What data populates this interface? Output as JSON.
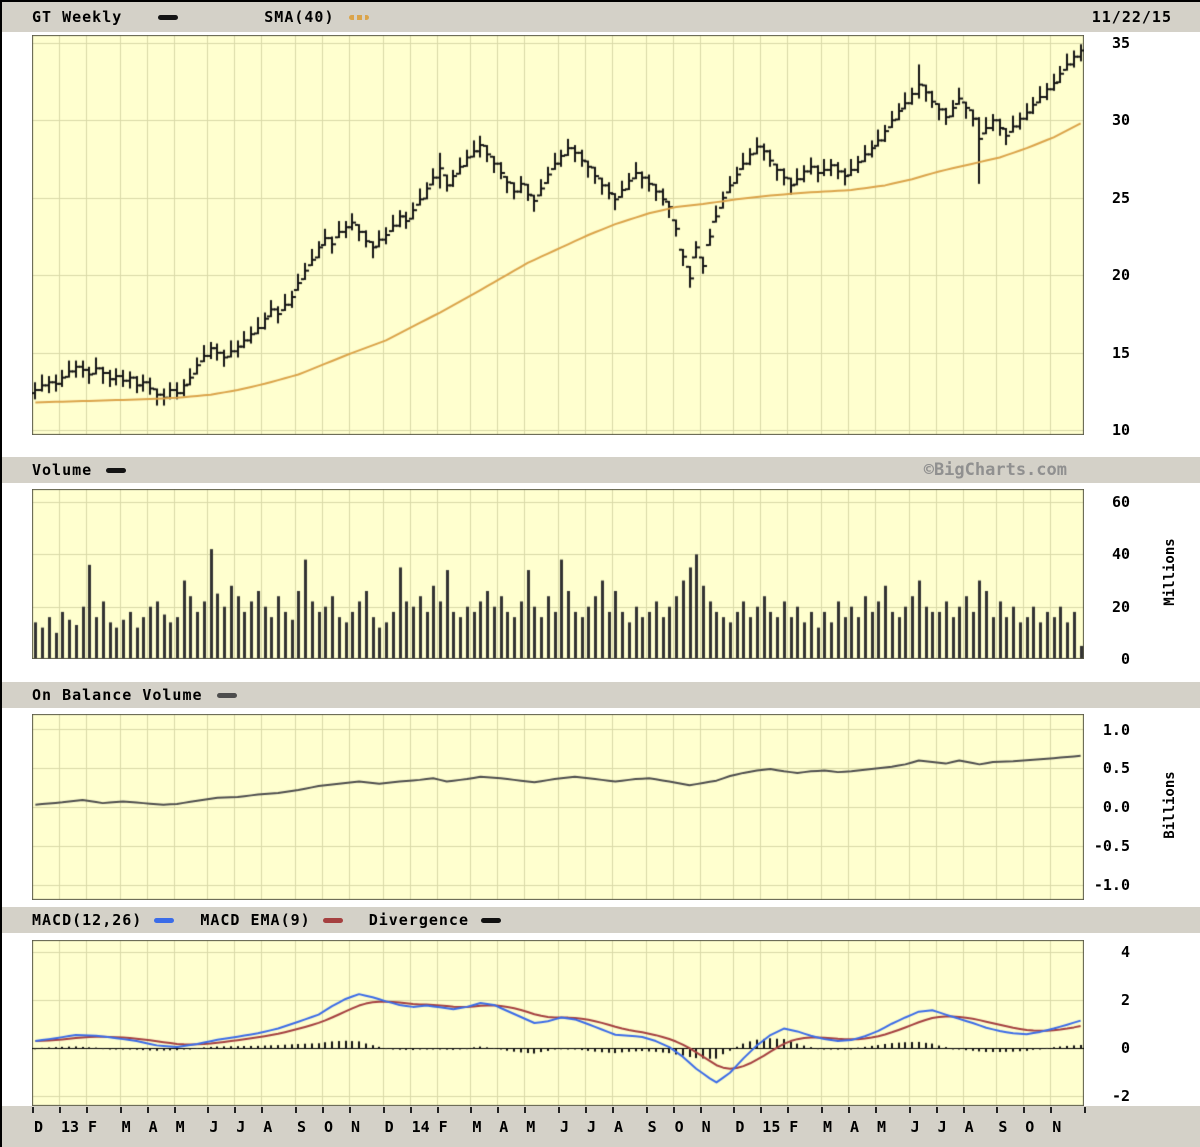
{
  "header": {
    "symbol_label": "GT Weekly",
    "sma_label": "SMA(40)",
    "date": "11/22/15"
  },
  "panels": {
    "price": {
      "ticks": [
        "35",
        "30",
        "25",
        "20",
        "15",
        "10"
      ]
    },
    "volume": {
      "label": "Volume",
      "watermark": "©BigCharts.com",
      "unit": "Millions",
      "ticks": [
        "60",
        "40",
        "20",
        "0"
      ]
    },
    "obv": {
      "label": "On Balance Volume",
      "unit": "Billions",
      "ticks": [
        "1.0",
        "0.5",
        "0.0",
        "-0.5",
        "-1.0"
      ]
    },
    "macd": {
      "legend": [
        {
          "label": "MACD(12,26)"
        },
        {
          "label": "MACD EMA(9)"
        },
        {
          "label": "Divergence"
        }
      ],
      "ticks": [
        "4",
        "2",
        "0",
        "-2"
      ]
    }
  },
  "colors": {
    "plot_bg": "#ffffcf",
    "grid": "#d9d9a8",
    "border": "#5a5a48",
    "bar": "#141414",
    "sma": "#dba44a",
    "vol_bar": "#333333",
    "obv_line": "#4d4d4d",
    "macd": "#3b6ce8",
    "signal": "#a54040",
    "hist": "#111111",
    "strip_bg": "#d4d1c8",
    "watermark": "#909090"
  },
  "x_axis": {
    "labels": [
      "D",
      "13",
      "F",
      "M",
      "A",
      "M",
      "J",
      "J",
      "A",
      "S",
      "O",
      "N",
      "D",
      "14",
      "F",
      "M",
      "A",
      "M",
      "J",
      "J",
      "A",
      "S",
      "O",
      "N",
      "D",
      "15",
      "F",
      "M",
      "A",
      "M",
      "J",
      "J",
      "A",
      "S",
      "O",
      "N"
    ],
    "month_weeks": [
      4,
      4,
      5,
      4,
      4,
      5,
      4,
      4,
      5,
      4,
      4,
      5,
      4,
      4,
      5,
      4,
      4,
      5,
      4,
      4,
      5,
      4,
      4,
      5,
      4,
      4,
      5,
      4,
      4,
      5,
      4,
      4,
      5,
      4,
      4,
      5
    ]
  },
  "chart_data": [
    {
      "type": "ohlc-bar",
      "title": "GT Weekly",
      "overlay": "SMA(40)",
      "ylim": [
        10,
        35
      ],
      "weeks": 156,
      "close": [
        12.6,
        12.9,
        13.1,
        13.0,
        13.4,
        13.8,
        14.1,
        13.9,
        13.6,
        14.0,
        13.7,
        13.3,
        13.5,
        13.2,
        13.4,
        12.9,
        13.1,
        12.7,
        12.3,
        12.1,
        12.6,
        12.4,
        12.9,
        13.4,
        14.2,
        14.8,
        15.3,
        15.0,
        14.7,
        15.1,
        15.4,
        15.8,
        16.2,
        16.6,
        17.2,
        17.8,
        17.5,
        18.1,
        18.6,
        19.5,
        20.3,
        21.0,
        21.8,
        22.4,
        22.0,
        22.8,
        23.1,
        23.4,
        22.8,
        22.2,
        21.8,
        22.3,
        22.6,
        23.2,
        23.8,
        23.5,
        24.2,
        24.9,
        25.6,
        26.3,
        26.9,
        25.8,
        26.4,
        27.0,
        27.6,
        28.0,
        28.4,
        27.8,
        27.2,
        26.6,
        26.0,
        25.4,
        25.9,
        25.2,
        24.8,
        25.6,
        26.5,
        27.2,
        27.7,
        28.2,
        27.9,
        27.4,
        27.0,
        26.4,
        25.8,
        25.3,
        24.9,
        25.5,
        26.1,
        26.6,
        26.3,
        25.9,
        25.4,
        24.9,
        24.4,
        23.0,
        21.2,
        19.8,
        21.8,
        20.6,
        22.5,
        23.8,
        25.0,
        25.8,
        26.5,
        27.2,
        27.8,
        28.3,
        28.0,
        27.4,
        26.8,
        26.3,
        25.8,
        26.2,
        26.7,
        27.0,
        26.6,
        26.8,
        27.1,
        26.7,
        26.4,
        26.8,
        27.3,
        27.8,
        28.2,
        28.7,
        29.3,
        30.0,
        30.6,
        31.1,
        31.7,
        32.3,
        31.8,
        31.2,
        30.7,
        30.2,
        30.8,
        31.4,
        30.8,
        30.1,
        28.8,
        29.5,
        30.0,
        29.5,
        29.0,
        29.6,
        30.1,
        30.5,
        31.0,
        31.5,
        32.0,
        32.4,
        33.0,
        33.6,
        34.1,
        34.5
      ],
      "bar_spread_high": [
        0.5,
        0.7,
        0.4,
        0.6
      ],
      "bar_spread_low": [
        0.6,
        0.4,
        0.7,
        0.5
      ],
      "week_high_low_overrides": {
        "60": [
          27.9,
          25.6
        ],
        "66": [
          29.0,
          27.6
        ],
        "97": [
          20.6,
          19.2
        ],
        "131": [
          33.6,
          31.4
        ],
        "140": [
          30.2,
          25.9
        ],
        "155": [
          34.9,
          33.8
        ]
      },
      "sma40_anchor_points": [
        [
          0,
          11.8
        ],
        [
          4,
          11.85
        ],
        [
          8,
          11.9
        ],
        [
          12,
          11.95
        ],
        [
          16,
          12.0
        ],
        [
          21,
          12.1
        ],
        [
          26,
          12.3
        ],
        [
          30,
          12.6
        ],
        [
          34,
          13.0
        ],
        [
          39,
          13.6
        ],
        [
          43,
          14.3
        ],
        [
          47,
          15.0
        ],
        [
          52,
          15.8
        ],
        [
          56,
          16.7
        ],
        [
          60,
          17.6
        ],
        [
          65,
          18.8
        ],
        [
          69,
          19.8
        ],
        [
          73,
          20.8
        ],
        [
          78,
          21.8
        ],
        [
          82,
          22.6
        ],
        [
          86,
          23.3
        ],
        [
          91,
          24.0
        ],
        [
          95,
          24.4
        ],
        [
          99,
          24.6
        ],
        [
          104,
          24.9
        ],
        [
          108,
          25.1
        ],
        [
          113,
          25.3
        ],
        [
          117,
          25.4
        ],
        [
          121,
          25.5
        ],
        [
          126,
          25.8
        ],
        [
          130,
          26.2
        ],
        [
          134,
          26.7
        ],
        [
          139,
          27.2
        ],
        [
          143,
          27.6
        ],
        [
          147,
          28.2
        ],
        [
          151,
          28.9
        ],
        [
          155,
          29.8
        ]
      ]
    },
    {
      "type": "bar",
      "title": "Volume",
      "ylabel": "Millions",
      "ylim": [
        0,
        60
      ],
      "values": [
        14,
        12,
        16,
        10,
        18,
        15,
        13,
        20,
        36,
        16,
        22,
        14,
        12,
        15,
        18,
        12,
        16,
        20,
        22,
        17,
        14,
        16,
        30,
        24,
        18,
        22,
        42,
        25,
        20,
        28,
        24,
        18,
        22,
        26,
        20,
        16,
        24,
        18,
        15,
        26,
        38,
        22,
        18,
        20,
        24,
        16,
        14,
        18,
        22,
        26,
        16,
        12,
        14,
        18,
        35,
        22,
        20,
        24,
        18,
        28,
        22,
        34,
        18,
        16,
        20,
        18,
        22,
        26,
        20,
        24,
        18,
        16,
        22,
        34,
        20,
        16,
        24,
        18,
        38,
        26,
        18,
        16,
        20,
        24,
        30,
        18,
        26,
        18,
        14,
        20,
        16,
        18,
        22,
        16,
        20,
        24,
        30,
        35,
        40,
        28,
        22,
        18,
        16,
        14,
        18,
        22,
        16,
        20,
        24,
        18,
        16,
        22,
        16,
        20,
        14,
        18,
        12,
        18,
        14,
        22,
        16,
        20,
        16,
        24,
        18,
        22,
        28,
        18,
        16,
        20,
        24,
        30,
        20,
        18,
        18,
        22,
        16,
        20,
        24,
        18,
        30,
        26,
        16,
        22,
        16,
        20,
        14,
        16,
        20,
        14,
        18,
        16,
        20,
        14,
        18,
        5
      ]
    },
    {
      "type": "line",
      "title": "On Balance Volume",
      "ylabel": "Billions",
      "ylim": [
        -1,
        1
      ],
      "anchor_points": [
        [
          0,
          0.03
        ],
        [
          4,
          0.06
        ],
        [
          7,
          0.09
        ],
        [
          10,
          0.05
        ],
        [
          13,
          0.07
        ],
        [
          16,
          0.05
        ],
        [
          19,
          0.03
        ],
        [
          21,
          0.04
        ],
        [
          24,
          0.08
        ],
        [
          27,
          0.12
        ],
        [
          30,
          0.13
        ],
        [
          33,
          0.16
        ],
        [
          36,
          0.18
        ],
        [
          39,
          0.22
        ],
        [
          42,
          0.27
        ],
        [
          45,
          0.3
        ],
        [
          48,
          0.33
        ],
        [
          51,
          0.3
        ],
        [
          54,
          0.33
        ],
        [
          57,
          0.35
        ],
        [
          59,
          0.37
        ],
        [
          61,
          0.33
        ],
        [
          64,
          0.36
        ],
        [
          66,
          0.39
        ],
        [
          69,
          0.37
        ],
        [
          72,
          0.34
        ],
        [
          74,
          0.32
        ],
        [
          77,
          0.36
        ],
        [
          80,
          0.39
        ],
        [
          83,
          0.36
        ],
        [
          86,
          0.33
        ],
        [
          89,
          0.36
        ],
        [
          91,
          0.37
        ],
        [
          94,
          0.33
        ],
        [
          97,
          0.28
        ],
        [
          99,
          0.31
        ],
        [
          101,
          0.34
        ],
        [
          103,
          0.4
        ],
        [
          105,
          0.44
        ],
        [
          107,
          0.47
        ],
        [
          109,
          0.49
        ],
        [
          111,
          0.46
        ],
        [
          113,
          0.44
        ],
        [
          115,
          0.46
        ],
        [
          117,
          0.47
        ],
        [
          119,
          0.45
        ],
        [
          121,
          0.46
        ],
        [
          124,
          0.49
        ],
        [
          127,
          0.52
        ],
        [
          129,
          0.55
        ],
        [
          131,
          0.6
        ],
        [
          133,
          0.58
        ],
        [
          135,
          0.56
        ],
        [
          137,
          0.6
        ],
        [
          140,
          0.55
        ],
        [
          142,
          0.58
        ],
        [
          145,
          0.59
        ],
        [
          148,
          0.61
        ],
        [
          151,
          0.63
        ],
        [
          155,
          0.66
        ]
      ]
    },
    {
      "type": "line+histogram",
      "title": "MACD(12,26) with EMA(9) signal and divergence histogram",
      "ylim": [
        -2,
        4
      ],
      "signal_rule": "EMA(9) of MACD",
      "histogram_rule": "MACD minus signal",
      "macd_anchor_points": [
        [
          0,
          0.3
        ],
        [
          3,
          0.42
        ],
        [
          6,
          0.55
        ],
        [
          9,
          0.52
        ],
        [
          12,
          0.42
        ],
        [
          15,
          0.3
        ],
        [
          18,
          0.12
        ],
        [
          21,
          0.05
        ],
        [
          24,
          0.18
        ],
        [
          27,
          0.35
        ],
        [
          30,
          0.48
        ],
        [
          33,
          0.62
        ],
        [
          36,
          0.82
        ],
        [
          39,
          1.1
        ],
        [
          42,
          1.4
        ],
        [
          44,
          1.75
        ],
        [
          46,
          2.05
        ],
        [
          48,
          2.25
        ],
        [
          50,
          2.12
        ],
        [
          52,
          1.95
        ],
        [
          54,
          1.8
        ],
        [
          56,
          1.72
        ],
        [
          58,
          1.78
        ],
        [
          60,
          1.7
        ],
        [
          62,
          1.62
        ],
        [
          64,
          1.72
        ],
        [
          66,
          1.88
        ],
        [
          68,
          1.8
        ],
        [
          70,
          1.55
        ],
        [
          72,
          1.3
        ],
        [
          74,
          1.05
        ],
        [
          76,
          1.12
        ],
        [
          78,
          1.28
        ],
        [
          80,
          1.2
        ],
        [
          82,
          1.0
        ],
        [
          84,
          0.78
        ],
        [
          86,
          0.56
        ],
        [
          88,
          0.52
        ],
        [
          90,
          0.47
        ],
        [
          92,
          0.3
        ],
        [
          94,
          0.05
        ],
        [
          96,
          -0.35
        ],
        [
          98,
          -0.85
        ],
        [
          100,
          -1.25
        ],
        [
          101,
          -1.42
        ],
        [
          103,
          -1.02
        ],
        [
          105,
          -0.42
        ],
        [
          107,
          0.12
        ],
        [
          109,
          0.55
        ],
        [
          111,
          0.82
        ],
        [
          113,
          0.7
        ],
        [
          115,
          0.52
        ],
        [
          117,
          0.38
        ],
        [
          119,
          0.3
        ],
        [
          121,
          0.34
        ],
        [
          123,
          0.5
        ],
        [
          125,
          0.72
        ],
        [
          127,
          1.02
        ],
        [
          129,
          1.28
        ],
        [
          131,
          1.52
        ],
        [
          133,
          1.58
        ],
        [
          135,
          1.4
        ],
        [
          137,
          1.22
        ],
        [
          139,
          1.05
        ],
        [
          141,
          0.85
        ],
        [
          143,
          0.72
        ],
        [
          145,
          0.62
        ],
        [
          147,
          0.58
        ],
        [
          149,
          0.68
        ],
        [
          151,
          0.82
        ],
        [
          153,
          0.98
        ],
        [
          155,
          1.15
        ]
      ]
    }
  ]
}
